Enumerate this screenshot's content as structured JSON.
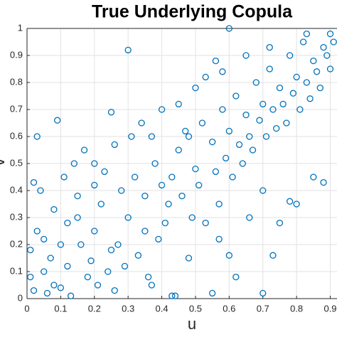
{
  "chart_data": {
    "type": "scatter",
    "title": "True Underlying Copula",
    "x_label": "u",
    "y_label": "v",
    "color": "#0072bd",
    "grid": true,
    "xlim": [
      0,
      0.92
    ],
    "ylim": [
      0,
      1
    ],
    "xticks": [
      0,
      0.1,
      0.2,
      0.3,
      0.4,
      0.5,
      0.6,
      0.7,
      0.8,
      0.9
    ],
    "yticks": [
      0,
      0.1,
      0.2,
      0.3,
      0.4,
      0.5,
      0.6,
      0.7,
      0.8,
      0.9,
      1
    ],
    "x": [
      0.02,
      0.05,
      0.08,
      0.1,
      0.03,
      0.12,
      0.15,
      0.07,
      0.18,
      0.2,
      0.22,
      0.25,
      0.28,
      0.3,
      0.32,
      0.35,
      0.38,
      0.4,
      0.42,
      0.45,
      0.48,
      0.5,
      0.52,
      0.55,
      0.58,
      0.6,
      0.62,
      0.65,
      0.68,
      0.7,
      0.72,
      0.75,
      0.78,
      0.8,
      0.82,
      0.85,
      0.88,
      0.9,
      0.03,
      0.3,
      0.6,
      0.09,
      0.25,
      0.43,
      0.44,
      0.55,
      0.7,
      0.62,
      0.6,
      0.75,
      0.8,
      0.78,
      0.7,
      0.85,
      0.88,
      0.04,
      0.02,
      0.01,
      0.01,
      0.06,
      0.1,
      0.13,
      0.16,
      0.19,
      0.21,
      0.24,
      0.27,
      0.29,
      0.33,
      0.36,
      0.39,
      0.41,
      0.43,
      0.46,
      0.49,
      0.51,
      0.53,
      0.56,
      0.57,
      0.59,
      0.61,
      0.63,
      0.64,
      0.66,
      0.67,
      0.69,
      0.71,
      0.73,
      0.74,
      0.76,
      0.77,
      0.79,
      0.81,
      0.83,
      0.84,
      0.86,
      0.87,
      0.89,
      0.91,
      0.9,
      0.11,
      0.14,
      0.17,
      0.2,
      0.23,
      0.26,
      0.31,
      0.34,
      0.37,
      0.4,
      0.45,
      0.5,
      0.53,
      0.56,
      0.58,
      0.47,
      0.35,
      0.2,
      0.15,
      0.12,
      0.08,
      0.05,
      0.65,
      0.72,
      0.83,
      0.57,
      0.66,
      0.73,
      0.48,
      0.37,
      0.26
    ],
    "y": [
      0.03,
      0.1,
      0.05,
      0.2,
      0.25,
      0.12,
      0.3,
      0.15,
      0.08,
      0.25,
      0.35,
      0.18,
      0.4,
      0.3,
      0.45,
      0.25,
      0.5,
      0.42,
      0.35,
      0.55,
      0.6,
      0.48,
      0.65,
      0.58,
      0.7,
      0.62,
      0.75,
      0.68,
      0.8,
      0.72,
      0.85,
      0.78,
      0.9,
      0.82,
      0.95,
      0.88,
      0.93,
      0.85,
      0.6,
      0.92,
      1.0,
      0.66,
      0.69,
      0.01,
      0.01,
      0.02,
      0.02,
      0.08,
      0.16,
      0.28,
      0.35,
      0.36,
      0.4,
      0.45,
      0.43,
      0.4,
      0.43,
      0.18,
      0.08,
      0.02,
      0.04,
      0.01,
      0.2,
      0.14,
      0.05,
      0.1,
      0.2,
      0.12,
      0.16,
      0.08,
      0.22,
      0.28,
      0.45,
      0.38,
      0.3,
      0.42,
      0.28,
      0.47,
      0.35,
      0.52,
      0.45,
      0.57,
      0.5,
      0.6,
      0.55,
      0.66,
      0.6,
      0.7,
      0.63,
      0.72,
      0.65,
      0.76,
      0.7,
      0.8,
      0.74,
      0.84,
      0.78,
      0.9,
      0.95,
      0.98,
      0.45,
      0.5,
      0.55,
      0.5,
      0.47,
      0.57,
      0.6,
      0.65,
      0.6,
      0.7,
      0.72,
      0.78,
      0.82,
      0.88,
      0.84,
      0.62,
      0.38,
      0.42,
      0.38,
      0.28,
      0.33,
      0.22,
      0.9,
      0.93,
      0.98,
      0.22,
      0.3,
      0.16,
      0.15,
      0.05,
      0.03
    ]
  }
}
